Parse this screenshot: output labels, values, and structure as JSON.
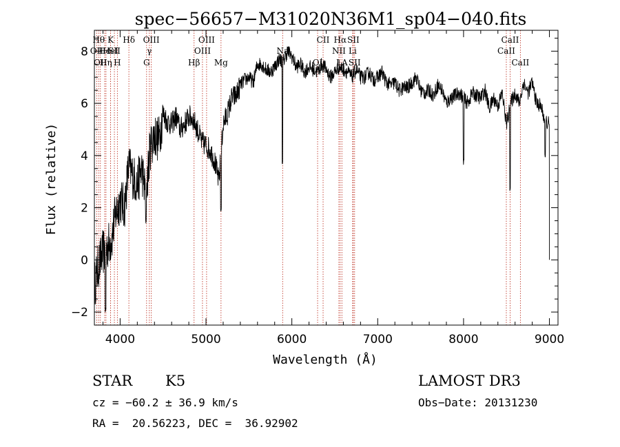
{
  "chart_data": {
    "type": "line",
    "title": "spec−56657−M31020N36M1_sp04−040.fits",
    "xlabel": "Wavelength (Å)",
    "ylabel": "Flux (relative)",
    "xlim": [
      3700,
      9100
    ],
    "ylim": [
      -2.5,
      8.8
    ],
    "x_ticks": [
      4000,
      5000,
      6000,
      7000,
      8000,
      9000
    ],
    "y_ticks": [
      -2,
      0,
      2,
      4,
      6,
      8
    ],
    "series": [
      {
        "name": "flux",
        "color": "#000000",
        "x": [
          3700,
          3750,
          3800,
          3850,
          3900,
          3950,
          4000,
          4050,
          4100,
          4150,
          4200,
          4250,
          4300,
          4350,
          4400,
          4450,
          4500,
          4550,
          4600,
          4650,
          4700,
          4750,
          4800,
          4850,
          4900,
          4950,
          5000,
          5050,
          5100,
          5150,
          5200,
          5250,
          5300,
          5350,
          5400,
          5450,
          5500,
          5550,
          5600,
          5650,
          5700,
          5750,
          5800,
          5850,
          5900,
          5950,
          6000,
          6050,
          6100,
          6150,
          6200,
          6250,
          6300,
          6350,
          6400,
          6450,
          6500,
          6550,
          6600,
          6650,
          6700,
          6750,
          6800,
          6850,
          6900,
          6950,
          7000,
          7050,
          7100,
          7150,
          7200,
          7250,
          7300,
          7350,
          7400,
          7450,
          7500,
          7550,
          7600,
          7650,
          7700,
          7750,
          7800,
          7850,
          7900,
          7950,
          8000,
          8050,
          8100,
          8150,
          8200,
          8250,
          8300,
          8350,
          8400,
          8450,
          8500,
          8550,
          8600,
          8650,
          8700,
          8750,
          8800,
          8850,
          8900,
          8950,
          9000
        ],
        "values": [
          -1.0,
          -0.2,
          0.3,
          0.5,
          0.8,
          1.8,
          2.3,
          2.0,
          3.6,
          3.2,
          2.9,
          3.5,
          2.5,
          4.3,
          4.8,
          4.6,
          5.6,
          5.3,
          5.2,
          5.5,
          5.0,
          5.2,
          5.5,
          5.4,
          5.0,
          4.5,
          4.4,
          4.2,
          3.8,
          3.0,
          5.2,
          5.6,
          6.2,
          6.3,
          6.7,
          6.9,
          7.0,
          6.8,
          7.5,
          7.5,
          7.3,
          7.2,
          7.4,
          7.7,
          7.6,
          8.0,
          7.8,
          7.4,
          7.5,
          7.2,
          7.4,
          7.3,
          7.2,
          7.5,
          7.3,
          7.0,
          7.2,
          7.4,
          7.3,
          7.2,
          7.0,
          7.3,
          7.0,
          7.0,
          7.2,
          6.9,
          7.0,
          7.2,
          6.8,
          6.7,
          6.8,
          6.5,
          6.6,
          6.6,
          6.8,
          7.0,
          6.5,
          6.4,
          6.5,
          6.3,
          6.7,
          6.5,
          6.0,
          6.2,
          6.3,
          6.4,
          6.2,
          6.0,
          6.4,
          6.3,
          6.2,
          6.5,
          5.8,
          6.2,
          5.9,
          6.4,
          5.2,
          6.0,
          6.4,
          6.0,
          6.8,
          6.4,
          6.8,
          6.0,
          5.9,
          5.3,
          5.2
        ]
      }
    ],
    "absorption_features": [
      {
        "x": 5890,
        "value": 3.7
      },
      {
        "x": 8000,
        "value": 3.8
      },
      {
        "x": 8542,
        "value": 2.8
      },
      {
        "x": 4300,
        "value": 1.4
      },
      {
        "x": 5175,
        "value": 2.0
      },
      {
        "x": 3830,
        "value": -1.9
      },
      {
        "x": 8950,
        "value": 3.9
      }
    ],
    "line_markers": [
      {
        "x": 3750,
        "label": "Hθ",
        "row": 1
      },
      {
        "x": 3727,
        "label": "OII",
        "row": 2
      },
      {
        "x": 3820,
        "label": "He",
        "row": 2
      },
      {
        "x": 3770,
        "label": "OII",
        "row": 3
      },
      {
        "x": 3835,
        "label": "Hη",
        "row": 3
      },
      {
        "x": 3889,
        "label": "K",
        "row": 1
      },
      {
        "x": 3889,
        "label": "HeI",
        "row": 2
      },
      {
        "x": 3933,
        "label": "SII",
        "row": 2
      },
      {
        "x": 3968,
        "label": "H",
        "row": 3
      },
      {
        "x": 4102,
        "label": "Hδ",
        "row": 1
      },
      {
        "x": 4308,
        "label": "G",
        "row": 3
      },
      {
        "x": 4340,
        "label": "γ",
        "row": 2
      },
      {
        "x": 4363,
        "label": "OIII",
        "row": 1
      },
      {
        "x": 4861,
        "label": "Hβ",
        "row": 3
      },
      {
        "x": 4959,
        "label": "OIII",
        "row": 2
      },
      {
        "x": 5007,
        "label": "OIII",
        "row": 1
      },
      {
        "x": 5175,
        "label": "Mg",
        "row": 3
      },
      {
        "x": 5893,
        "label": "Na",
        "row": 2
      },
      {
        "x": 6300,
        "label": "OI",
        "row": 3
      },
      {
        "x": 6364,
        "label": "CII",
        "row": 1
      },
      {
        "x": 6548,
        "label": "NII",
        "row": 2
      },
      {
        "x": 6563,
        "label": "Hα",
        "row": 1
      },
      {
        "x": 6583,
        "label": "LA",
        "row": 3
      },
      {
        "x": 6708,
        "label": "Li",
        "row": 2
      },
      {
        "x": 6716,
        "label": "SII",
        "row": 1
      },
      {
        "x": 6731,
        "label": "SII",
        "row": 3
      },
      {
        "x": 8498,
        "label": "CaII",
        "row": 2
      },
      {
        "x": 8542,
        "label": "CaII",
        "row": 1
      },
      {
        "x": 8662,
        "label": "CaII",
        "row": 3
      }
    ]
  },
  "info": {
    "class": "STAR",
    "subclass": "K5",
    "survey": "LAMOST DR3",
    "redshift": "cz = −60.2 ± 36.9 km/s",
    "obs_date": "Obs−Date: 20131230",
    "coords": "RA =  20.56223, DEC =  36.92902"
  }
}
